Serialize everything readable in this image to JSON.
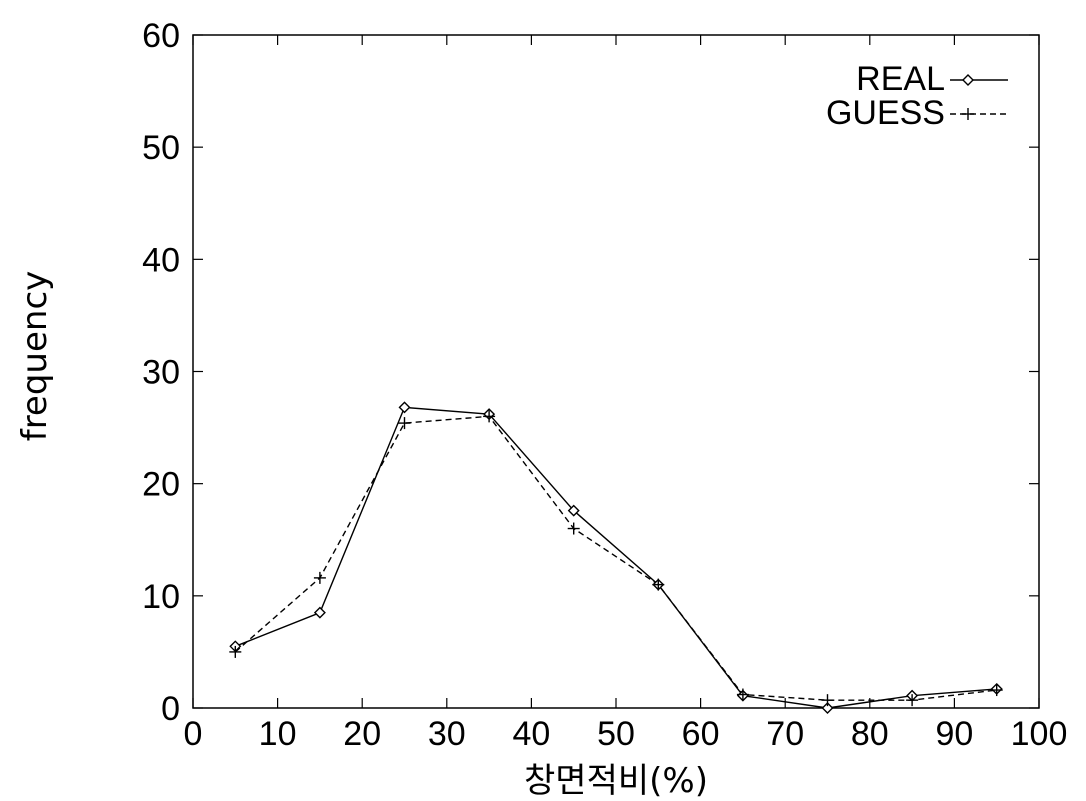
{
  "chart_data": {
    "type": "line",
    "title": "",
    "xlabel": "창면적비(%)",
    "ylabel": "frequency",
    "xlim": [
      0,
      100
    ],
    "ylim": [
      0,
      60
    ],
    "x_ticks": [
      "0",
      "10",
      "20",
      "30",
      "40",
      "50",
      "60",
      "70",
      "80",
      "90",
      "100"
    ],
    "y_ticks": [
      "0",
      "10",
      "20",
      "30",
      "40",
      "50",
      "60"
    ],
    "grid": false,
    "legend_position": "top-right",
    "x": [
      5,
      15,
      25,
      35,
      45,
      55,
      65,
      75,
      85,
      95
    ],
    "series": [
      {
        "name": "REAL",
        "marker": "diamond",
        "line_style": "solid",
        "color": "#000000",
        "values": [
          5.5,
          8.5,
          26.8,
          26.2,
          17.6,
          11.0,
          1.1,
          0.0,
          1.1,
          1.7
        ]
      },
      {
        "name": "GUESS",
        "marker": "plus",
        "line_style": "dashed",
        "color": "#000000",
        "values": [
          5.0,
          11.6,
          25.4,
          26.0,
          16.0,
          11.0,
          1.2,
          0.7,
          0.7,
          1.6
        ]
      }
    ]
  }
}
